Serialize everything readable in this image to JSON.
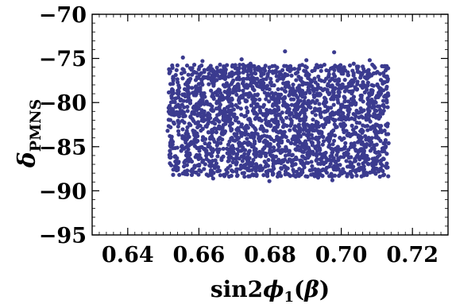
{
  "chart_data": {
    "type": "scatter",
    "xlabel": {
      "main": "sin2",
      "greek": "ϕ",
      "sub": "1",
      "paren_open": "(",
      "paren_greek": "β",
      "paren_close": ")"
    },
    "ylabel": {
      "greek": "δ",
      "sub": "PMNS"
    },
    "xlim": [
      0.63,
      0.73
    ],
    "ylim": [
      -95,
      -70
    ],
    "xticks": [
      0.64,
      0.66,
      0.68,
      0.7,
      0.72
    ],
    "xtick_labels": [
      "0.64",
      "0.66",
      "0.68",
      "0.70",
      "0.72"
    ],
    "yticks": [
      -70,
      -75,
      -80,
      -85,
      -90,
      -95
    ],
    "ytick_labels": [
      "−70",
      "−75",
      "−80",
      "−85",
      "−90",
      "−95"
    ],
    "grid": false,
    "marker_color": "#3b3b8f",
    "points": [
      {
        "x": 0.6525,
        "y": -75.8
      },
      {
        "x": 0.661,
        "y": -75.3
      },
      {
        "x": 0.6745,
        "y": -75.6
      },
      {
        "x": 0.6842,
        "y": -74.2
      },
      {
        "x": 0.698,
        "y": -74.3
      },
      {
        "x": 0.708,
        "y": -75.2
      },
      {
        "x": 0.712,
        "y": -75.9
      },
      {
        "x": 0.6555,
        "y": -74.9
      },
      {
        "x": 0.672,
        "y": -75.1
      },
      {
        "x": 0.6902,
        "y": -75.2
      },
      {
        "x": 0.7035,
        "y": -75.6
      },
      {
        "x": 0.667,
        "y": -75.9
      },
      {
        "x": 0.658,
        "y": -88.2
      },
      {
        "x": 0.664,
        "y": -88.6
      },
      {
        "x": 0.6762,
        "y": -88.3
      },
      {
        "x": 0.6798,
        "y": -88.9
      },
      {
        "x": 0.6935,
        "y": -88.5
      },
      {
        "x": 0.6975,
        "y": -88.8
      },
      {
        "x": 0.703,
        "y": -88.4
      },
      {
        "x": 0.71,
        "y": -87.5
      },
      {
        "x": 0.6528,
        "y": -87.6
      },
      {
        "x": 0.6695,
        "y": -87.8
      },
      {
        "x": 0.685,
        "y": -88.1
      },
      {
        "x": 0.7128,
        "y": -86.9
      },
      {
        "x": 0.6515,
        "y": -80.6
      },
      {
        "x": 0.6512,
        "y": -83.2
      },
      {
        "x": 0.6518,
        "y": -86.2
      },
      {
        "x": 0.652,
        "y": -77.9
      },
      {
        "x": 0.7132,
        "y": -79.2
      },
      {
        "x": 0.713,
        "y": -82.4
      },
      {
        "x": 0.7133,
        "y": -84.6
      },
      {
        "x": 0.7126,
        "y": -77.1
      }
    ]
  }
}
